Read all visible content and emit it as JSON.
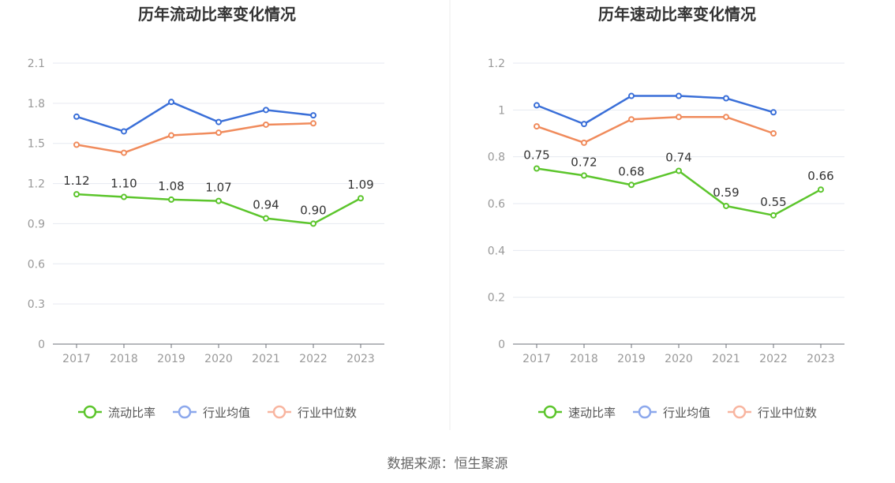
{
  "source_text": "数据来源：恒生聚源",
  "colors": {
    "main_line": "#5CC52C",
    "industry_avg": "#3A6FD8",
    "industry_median": "#F08B5C",
    "legend_avg": "#8CA8EC",
    "legend_median": "#F8B5A0",
    "grid": "#E6E9F0",
    "axis": "#6E7079",
    "tick_text": "#999999",
    "label_text": "#333333",
    "title_text": "#333333"
  },
  "chart_data": [
    {
      "type": "line",
      "title": "历年流动比率变化情况",
      "categories": [
        "2017",
        "2018",
        "2019",
        "2020",
        "2021",
        "2022",
        "2023"
      ],
      "ylim": [
        0,
        2.1
      ],
      "yticks": [
        0,
        0.3,
        0.6,
        0.9,
        1.2,
        1.5,
        1.8,
        2.1
      ],
      "ytick_labels": [
        "0",
        "0.3",
        "0.6",
        "0.9",
        "1.2",
        "1.5",
        "1.8",
        "2.1"
      ],
      "grid": true,
      "legend_position": "bottom",
      "series": [
        {
          "name": "流动比率",
          "values": [
            1.12,
            1.1,
            1.08,
            1.07,
            0.94,
            0.9,
            1.09
          ],
          "data_labels": [
            "1.12",
            "1.10",
            "1.08",
            "1.07",
            "0.94",
            "0.90",
            "1.09"
          ]
        },
        {
          "name": "行业均值",
          "values": [
            1.7,
            1.59,
            1.81,
            1.66,
            1.75,
            1.71,
            null
          ]
        },
        {
          "name": "行业中位数",
          "values": [
            1.49,
            1.43,
            1.56,
            1.58,
            1.64,
            1.65,
            null
          ]
        }
      ]
    },
    {
      "type": "line",
      "title": "历年速动比率变化情况",
      "categories": [
        "2017",
        "2018",
        "2019",
        "2020",
        "2021",
        "2022",
        "2023"
      ],
      "ylim": [
        0,
        1.2
      ],
      "yticks": [
        0,
        0.2,
        0.4,
        0.6,
        0.8,
        1.0,
        1.2
      ],
      "ytick_labels": [
        "0",
        "0.2",
        "0.4",
        "0.6",
        "0.8",
        "1",
        "1.2"
      ],
      "grid": true,
      "legend_position": "bottom",
      "series": [
        {
          "name": "速动比率",
          "values": [
            0.75,
            0.72,
            0.68,
            0.74,
            0.59,
            0.55,
            0.66
          ],
          "data_labels": [
            "0.75",
            "0.72",
            "0.68",
            "0.74",
            "0.59",
            "0.55",
            "0.66"
          ]
        },
        {
          "name": "行业均值",
          "values": [
            1.02,
            0.94,
            1.06,
            1.06,
            1.05,
            0.99,
            null
          ]
        },
        {
          "name": "行业中位数",
          "values": [
            0.93,
            0.86,
            0.96,
            0.97,
            0.97,
            0.9,
            null
          ]
        }
      ]
    }
  ]
}
